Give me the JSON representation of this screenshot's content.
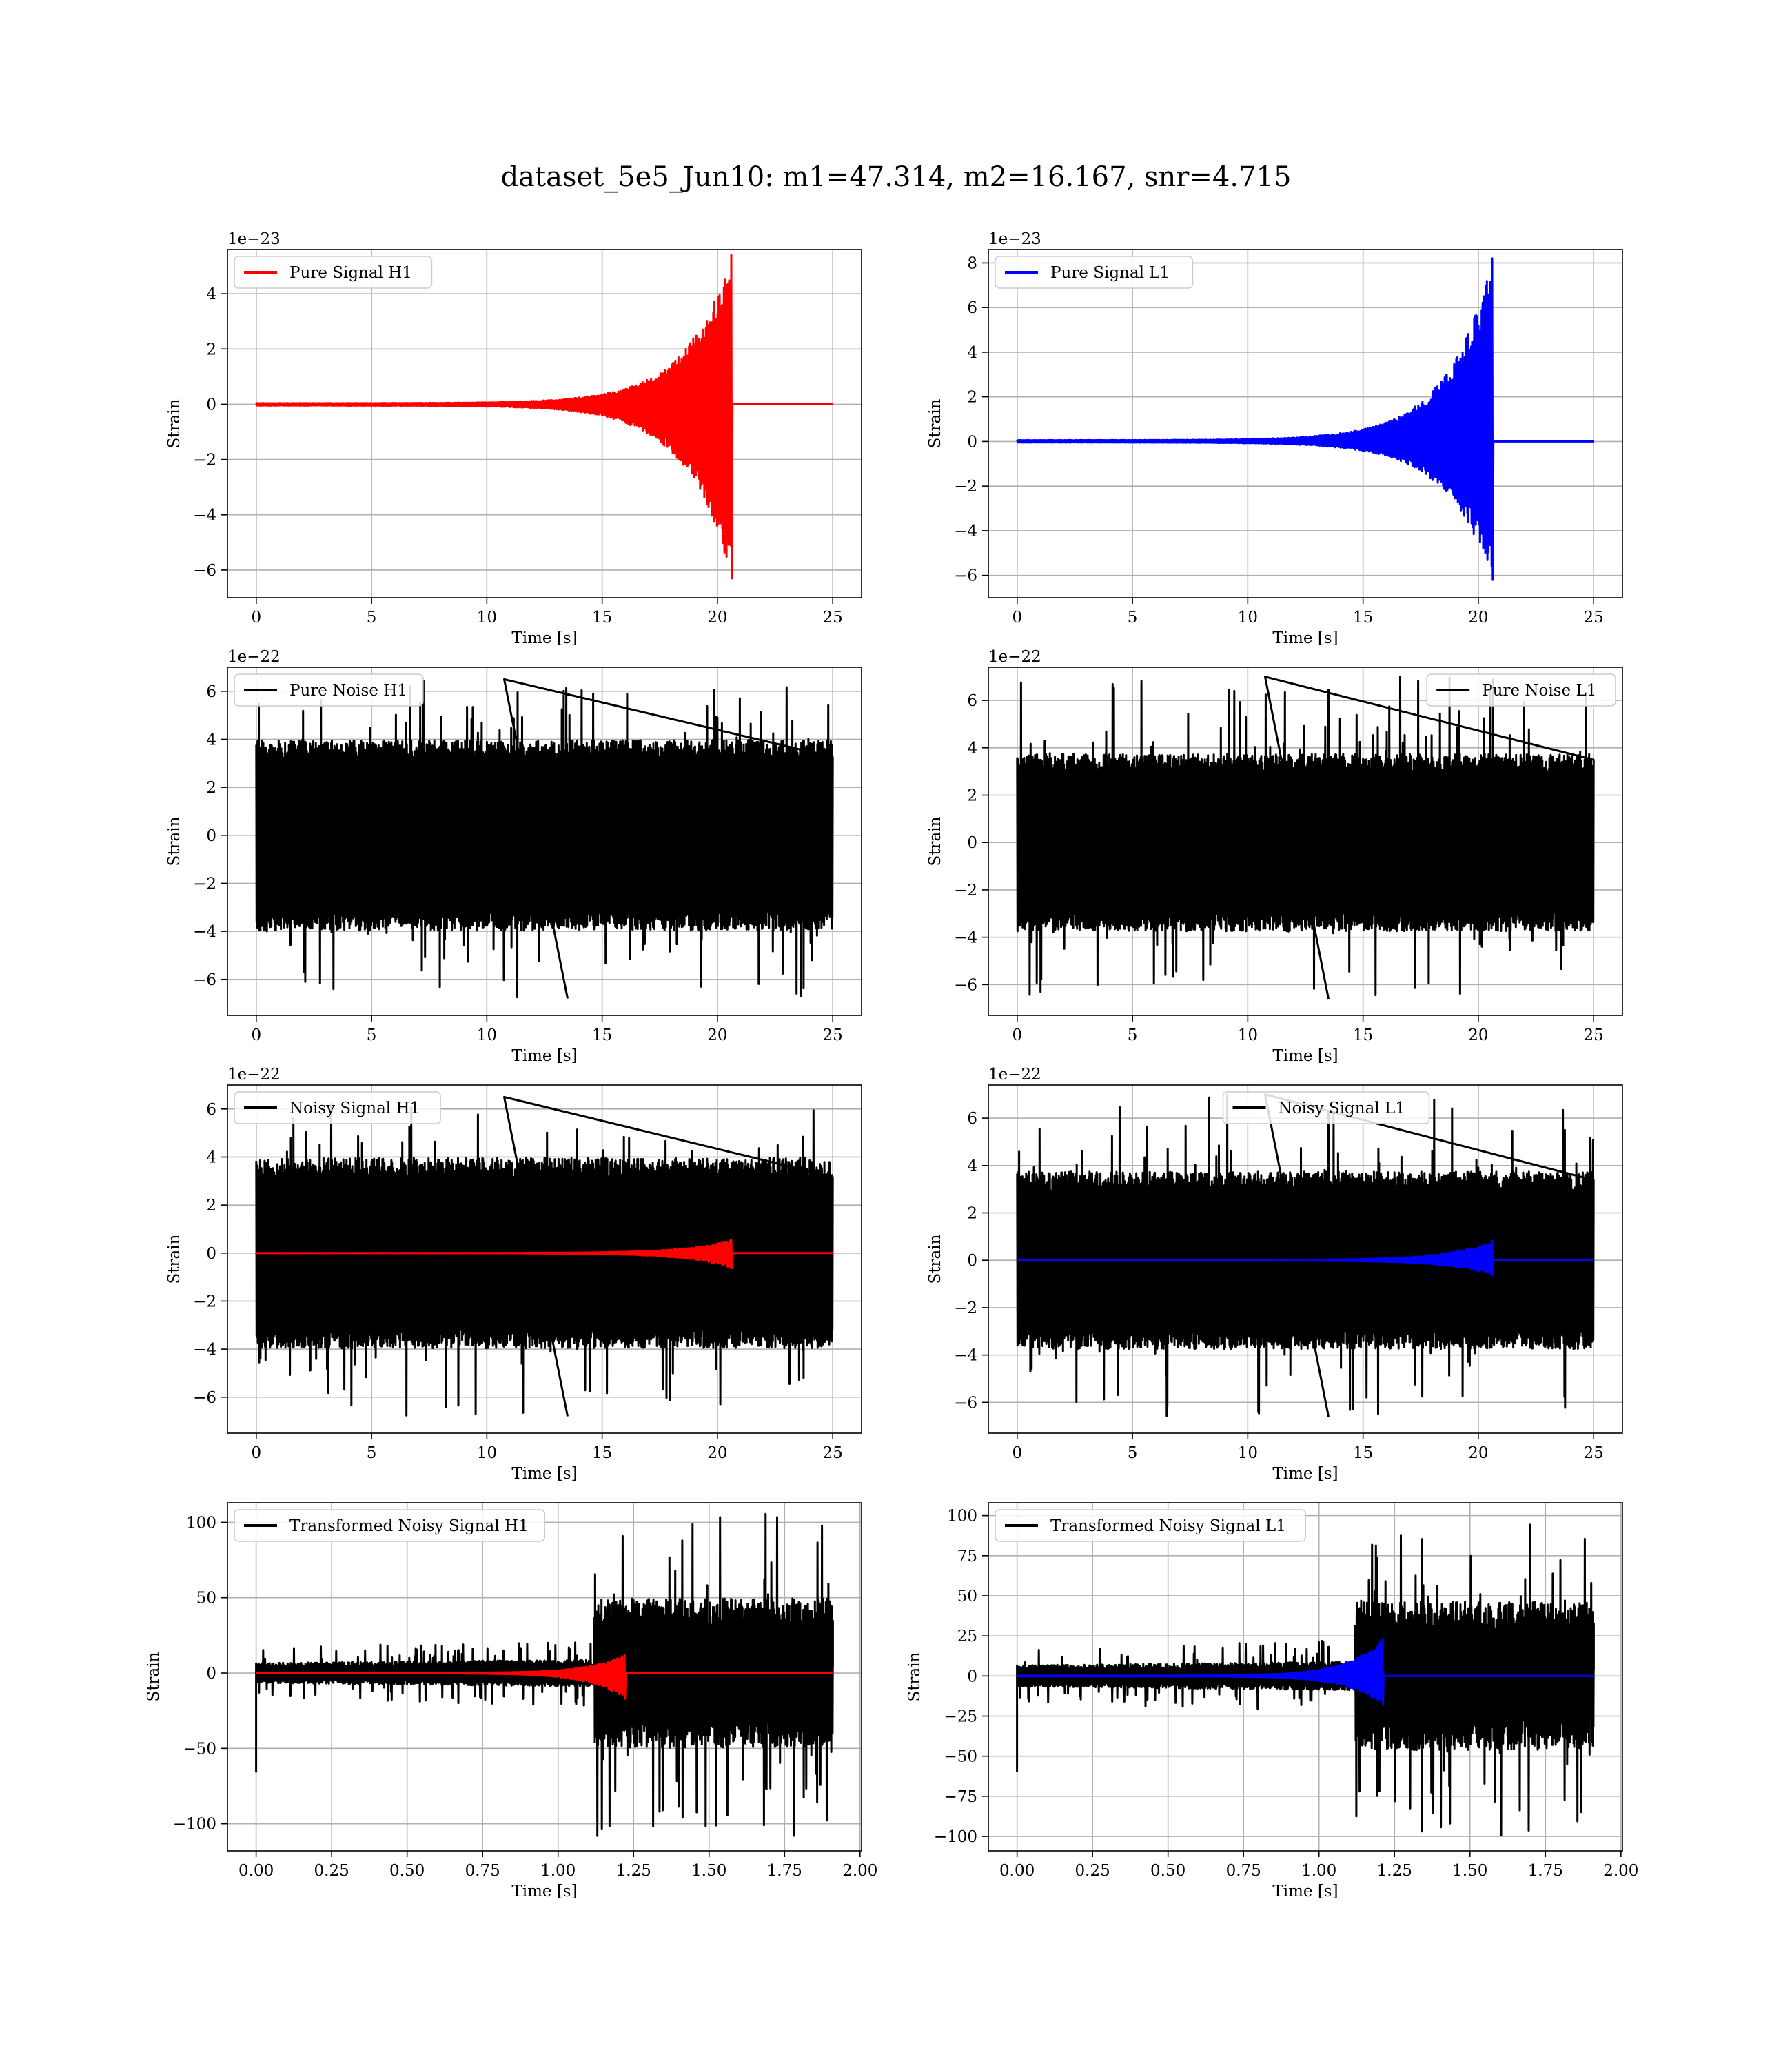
{
  "figure": {
    "title": "dataset_5e5_Jun10: m1=47.314, m2=16.167, snr=4.715"
  },
  "chart_data": [
    {
      "id": "p1",
      "type": "line",
      "xlabel": "Time [s]",
      "ylabel": "Strain",
      "offset_text": "1e−23",
      "xlim": [
        -1.25,
        26.25
      ],
      "ylim": [
        -7.0,
        5.6
      ],
      "xticks": [
        0,
        5,
        10,
        15,
        20,
        25
      ],
      "xtick_labels": [
        "0",
        "5",
        "10",
        "15",
        "20",
        "25"
      ],
      "yticks": [
        -6,
        -4,
        -2,
        0,
        2,
        4
      ],
      "ytick_labels": [
        "−6",
        "−4",
        "−2",
        "0",
        "2",
        "4"
      ],
      "grid": true,
      "legend_position": "upper left",
      "series": [
        {
          "name": "Pure Signal H1",
          "color": "#ff0000",
          "kind": "chirp",
          "x_start": 0,
          "x_end": 25,
          "merger_time": 20.6,
          "envelope_peak": 5.4,
          "envelope_min": -6.3
        }
      ]
    },
    {
      "id": "p2",
      "type": "line",
      "xlabel": "Time [s]",
      "ylabel": "Strain",
      "offset_text": "1e−23",
      "xlim": [
        -1.25,
        26.25
      ],
      "ylim": [
        -7.0,
        8.6
      ],
      "xticks": [
        0,
        5,
        10,
        15,
        20,
        25
      ],
      "xtick_labels": [
        "0",
        "5",
        "10",
        "15",
        "20",
        "25"
      ],
      "yticks": [
        -6,
        -4,
        -2,
        0,
        2,
        4,
        6,
        8
      ],
      "ytick_labels": [
        "−6",
        "−4",
        "−2",
        "0",
        "2",
        "4",
        "6",
        "8"
      ],
      "grid": true,
      "legend_position": "upper left",
      "series": [
        {
          "name": "Pure Signal L1",
          "color": "#0000ff",
          "kind": "chirp",
          "x_start": 0,
          "x_end": 25,
          "merger_time": 20.6,
          "envelope_peak": 8.2,
          "envelope_min": -6.2
        }
      ]
    },
    {
      "id": "p3",
      "type": "line",
      "xlabel": "Time [s]",
      "ylabel": "Strain",
      "offset_text": "1e−22",
      "xlim": [
        -1.25,
        26.25
      ],
      "ylim": [
        -7.5,
        7.0
      ],
      "xticks": [
        0,
        5,
        10,
        15,
        20,
        25
      ],
      "xtick_labels": [
        "0",
        "5",
        "10",
        "15",
        "20",
        "25"
      ],
      "yticks": [
        -6,
        -4,
        -2,
        0,
        2,
        4,
        6
      ],
      "ytick_labels": [
        "−6",
        "−4",
        "−2",
        "0",
        "2",
        "4",
        "6"
      ],
      "grid": true,
      "legend_position": "upper left",
      "series": [
        {
          "name": "Pure Noise H1",
          "color": "#000000",
          "kind": "noise",
          "x_start": 0,
          "x_end": 25,
          "band": 3.6,
          "max": 6.5,
          "min": -6.8
        }
      ]
    },
    {
      "id": "p4",
      "type": "line",
      "xlabel": "Time [s]",
      "ylabel": "Strain",
      "offset_text": "1e−22",
      "xlim": [
        -1.25,
        26.25
      ],
      "ylim": [
        -7.3,
        7.4
      ],
      "xticks": [
        0,
        5,
        10,
        15,
        20,
        25
      ],
      "xtick_labels": [
        "0",
        "5",
        "10",
        "15",
        "20",
        "25"
      ],
      "yticks": [
        -6,
        -4,
        -2,
        0,
        2,
        4,
        6
      ],
      "ytick_labels": [
        "−6",
        "−4",
        "−2",
        "0",
        "2",
        "4",
        "6"
      ],
      "grid": true,
      "legend_position": "upper right",
      "series": [
        {
          "name": "Pure Noise L1",
          "color": "#000000",
          "kind": "noise",
          "x_start": 0,
          "x_end": 25,
          "band": 3.4,
          "max": 7.0,
          "min": -6.6
        }
      ]
    },
    {
      "id": "p5",
      "type": "line",
      "xlabel": "Time [s]",
      "ylabel": "Strain",
      "offset_text": "1e−22",
      "xlim": [
        -1.25,
        26.25
      ],
      "ylim": [
        -7.5,
        7.0
      ],
      "xticks": [
        0,
        5,
        10,
        15,
        20,
        25
      ],
      "xtick_labels": [
        "0",
        "5",
        "10",
        "15",
        "20",
        "25"
      ],
      "yticks": [
        -6,
        -4,
        -2,
        0,
        2,
        4,
        6
      ],
      "ytick_labels": [
        "−6",
        "−4",
        "−2",
        "0",
        "2",
        "4",
        "6"
      ],
      "grid": true,
      "legend_position": "upper left",
      "series": [
        {
          "name": "Noisy Signal H1",
          "color": "#000000",
          "kind": "noise",
          "x_start": 0,
          "x_end": 25,
          "band": 3.6,
          "max": 6.5,
          "min": -6.8
        },
        {
          "name": "",
          "color": "#ff0000",
          "kind": "chirp",
          "x_start": 0,
          "x_end": 25,
          "merger_time": 20.6,
          "envelope_peak": 0.54,
          "envelope_min": -0.63
        }
      ]
    },
    {
      "id": "p6",
      "type": "line",
      "xlabel": "Time [s]",
      "ylabel": "Strain",
      "offset_text": "1e−22",
      "xlim": [
        -1.25,
        26.25
      ],
      "ylim": [
        -7.3,
        7.4
      ],
      "xticks": [
        0,
        5,
        10,
        15,
        20,
        25
      ],
      "xtick_labels": [
        "0",
        "5",
        "10",
        "15",
        "20",
        "25"
      ],
      "yticks": [
        -6,
        -4,
        -2,
        0,
        2,
        4,
        6
      ],
      "ytick_labels": [
        "−6",
        "−4",
        "−2",
        "0",
        "2",
        "4",
        "6"
      ],
      "grid": true,
      "legend_position": "upper center",
      "series": [
        {
          "name": "Noisy Signal L1",
          "color": "#000000",
          "kind": "noise",
          "x_start": 0,
          "x_end": 25,
          "band": 3.4,
          "max": 7.0,
          "min": -6.6
        },
        {
          "name": "",
          "color": "#0000ff",
          "kind": "chirp",
          "x_start": 0,
          "x_end": 25,
          "merger_time": 20.6,
          "envelope_peak": 0.82,
          "envelope_min": -0.62
        }
      ]
    },
    {
      "id": "p7",
      "type": "line",
      "xlabel": "Time [s]",
      "ylabel": "Strain",
      "offset_text": "",
      "xlim": [
        -0.095,
        2.005
      ],
      "ylim": [
        -118,
        113
      ],
      "xticks": [
        0,
        0.25,
        0.5,
        0.75,
        1.0,
        1.25,
        1.5,
        1.75,
        2.0
      ],
      "xtick_labels": [
        "0.00",
        "0.25",
        "0.50",
        "0.75",
        "1.00",
        "1.25",
        "1.50",
        "1.75",
        "2.00"
      ],
      "yticks": [
        -100,
        -50,
        0,
        50,
        100
      ],
      "ytick_labels": [
        "−100",
        "−50",
        "0",
        "50",
        "100"
      ],
      "grid": true,
      "legend_position": "upper left",
      "series": [
        {
          "name": "Transformed Noisy Signal H1",
          "color": "#000000",
          "kind": "transformed",
          "x_start": 0,
          "x_end": 1.91,
          "step_time": 1.12,
          "low_band": 6,
          "high_band": 45,
          "max": 106,
          "min": -110
        },
        {
          "name": "",
          "color": "#ff0000",
          "kind": "chirp",
          "x_start": 0,
          "x_end": 1.91,
          "merger_time": 1.22,
          "envelope_peak": 12,
          "envelope_min": -17
        }
      ]
    },
    {
      "id": "p8",
      "type": "line",
      "xlabel": "Time [s]",
      "ylabel": "Strain",
      "offset_text": "",
      "xlim": [
        -0.095,
        2.005
      ],
      "ylim": [
        -109,
        108
      ],
      "xticks": [
        0,
        0.25,
        0.5,
        0.75,
        1.0,
        1.25,
        1.5,
        1.75,
        2.0
      ],
      "xtick_labels": [
        "0.00",
        "0.25",
        "0.50",
        "0.75",
        "1.00",
        "1.25",
        "1.50",
        "1.75",
        "2.00"
      ],
      "yticks": [
        -100,
        -75,
        -50,
        -25,
        0,
        25,
        50,
        75,
        100
      ],
      "ytick_labels": [
        "−100",
        "−75",
        "−50",
        "−25",
        "0",
        "25",
        "50",
        "75",
        "100"
      ],
      "grid": true,
      "legend_position": "upper left",
      "series": [
        {
          "name": "Transformed Noisy Signal L1",
          "color": "#000000",
          "kind": "transformed",
          "x_start": 0,
          "x_end": 1.91,
          "step_time": 1.12,
          "low_band": 6,
          "high_band": 42,
          "max": 98,
          "min": -100
        },
        {
          "name": "",
          "color": "#0000ff",
          "kind": "chirp",
          "x_start": 0,
          "x_end": 1.91,
          "merger_time": 1.21,
          "envelope_peak": 23,
          "envelope_min": -18
        }
      ]
    }
  ]
}
